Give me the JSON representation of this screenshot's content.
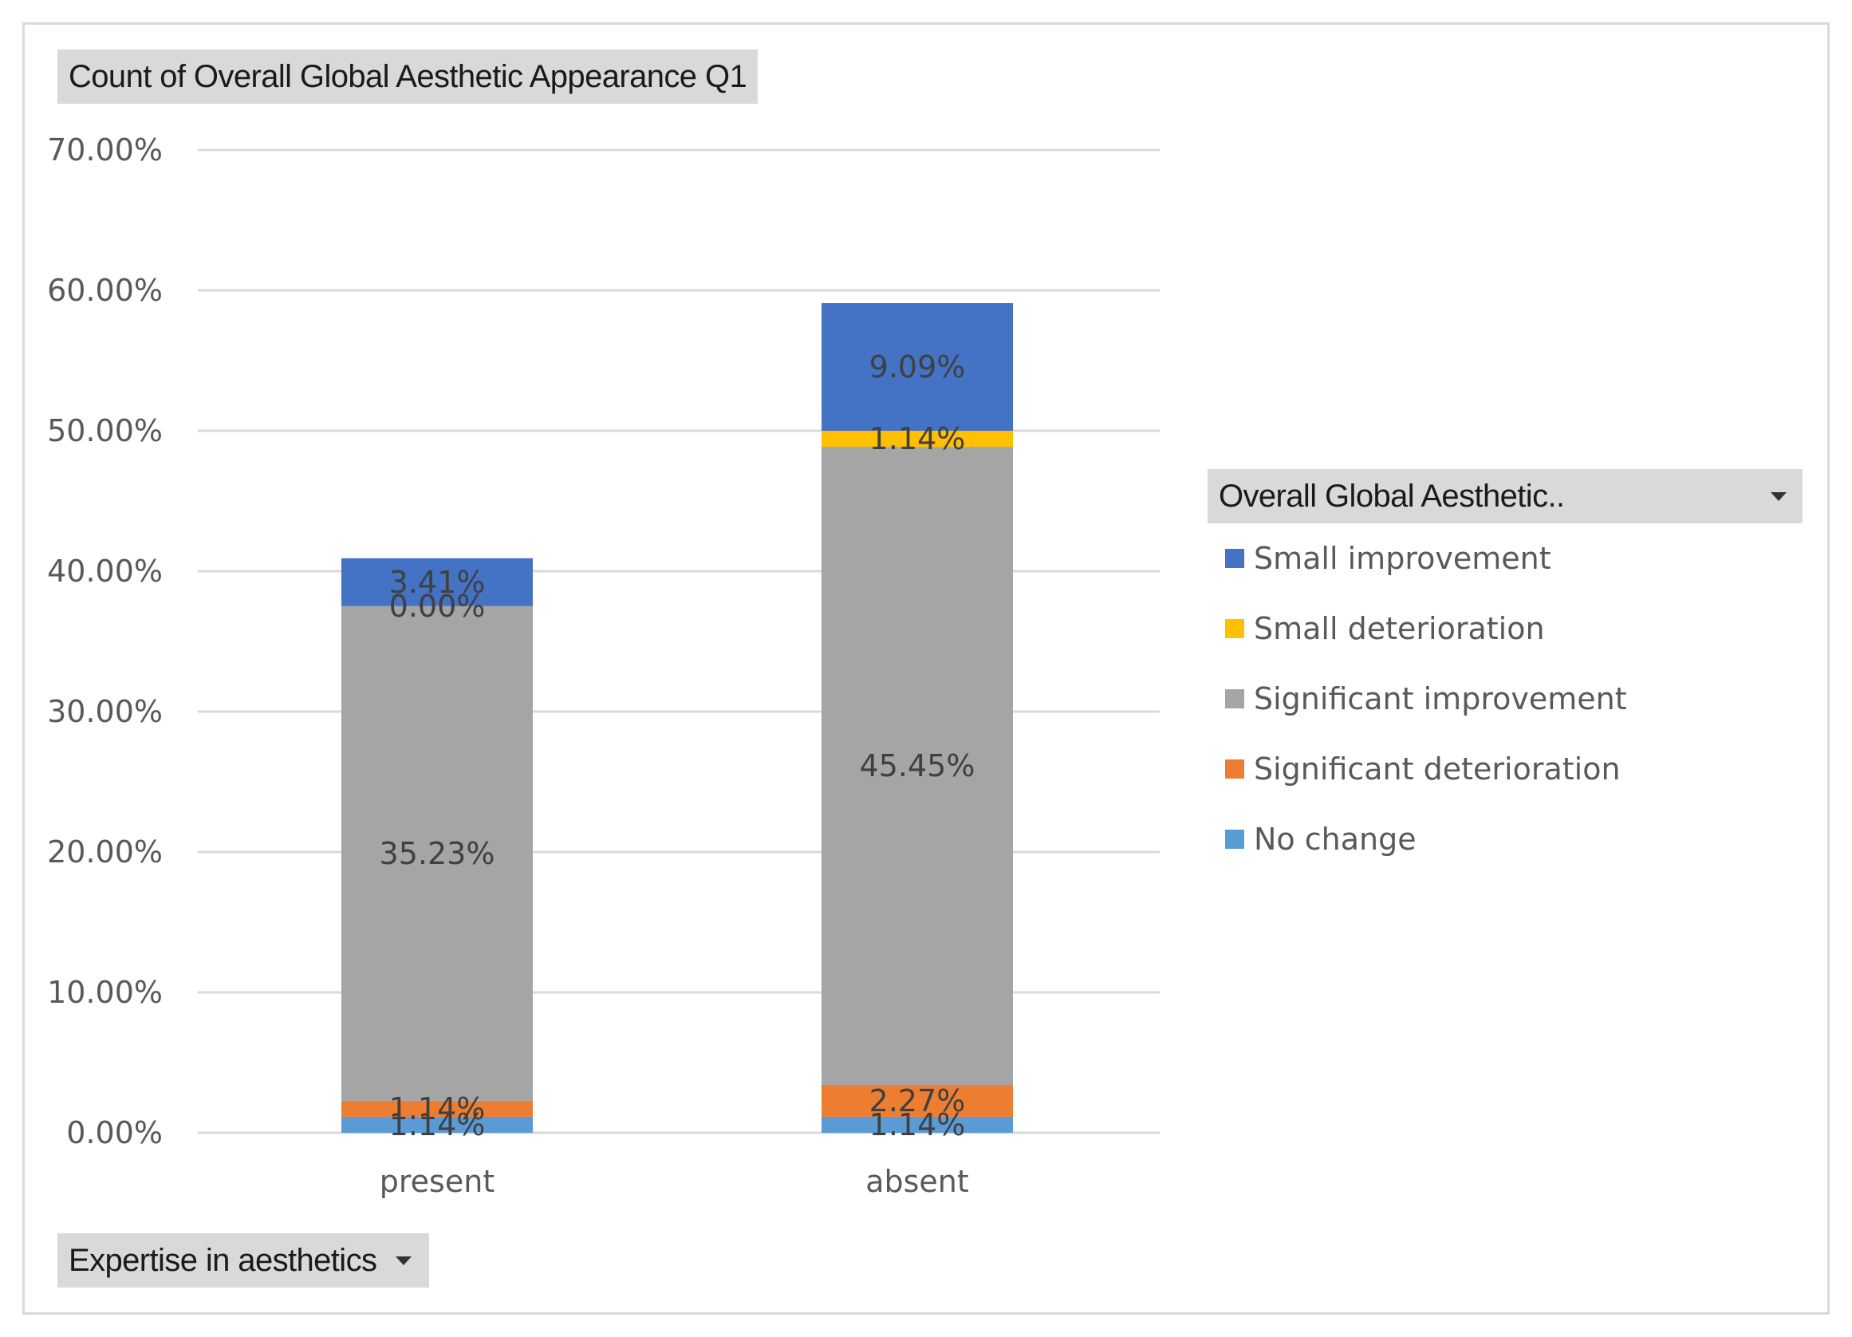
{
  "chart_data": {
    "type": "bar",
    "stacked": true,
    "title": "Count of Overall Global Aesthetic Appearance Q1",
    "xlabel": "Expertise in aesthetics",
    "ylabel": "",
    "ylim": [
      0,
      70
    ],
    "y_ticks": [
      0,
      10,
      20,
      30,
      40,
      50,
      60,
      70
    ],
    "y_tick_labels": [
      "0.00%",
      "10.00%",
      "20.00%",
      "30.00%",
      "40.00%",
      "50.00%",
      "60.00%",
      "70.00%"
    ],
    "categories": [
      "present",
      "absent"
    ],
    "grid": true,
    "legend_title": "Overall Global Aesthetic..",
    "legend_position": "right",
    "series": [
      {
        "name": "No change",
        "color": "#5b9bd5",
        "values": [
          1.14,
          1.14
        ],
        "labels": [
          "1.14%",
          "1.14%"
        ]
      },
      {
        "name": "Significant deterioration",
        "color": "#ed7d31",
        "values": [
          1.14,
          2.27
        ],
        "labels": [
          "1.14%",
          "2.27%"
        ]
      },
      {
        "name": "Significant improvement",
        "color": "#a5a5a5",
        "values": [
          35.23,
          45.45
        ],
        "labels": [
          "35.23%",
          "45.45%"
        ]
      },
      {
        "name": "Small deterioration",
        "color": "#ffc000",
        "values": [
          0.0,
          1.14
        ],
        "labels": [
          "0.00%",
          "1.14%"
        ]
      },
      {
        "name": "Small improvement",
        "color": "#4472c4",
        "values": [
          3.41,
          9.09
        ],
        "labels": [
          "3.41%",
          "9.09%"
        ]
      }
    ],
    "legend_order": [
      "Small improvement",
      "Small deterioration",
      "Significant improvement",
      "Significant deterioration",
      "No change"
    ]
  }
}
